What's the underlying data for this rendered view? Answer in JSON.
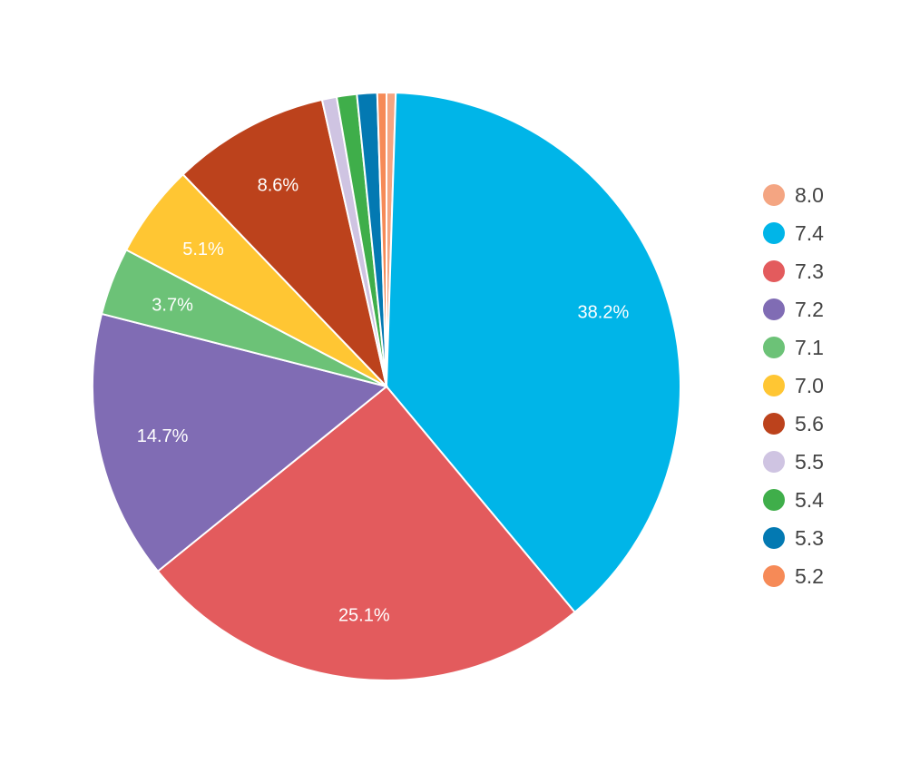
{
  "chart_data": {
    "type": "pie",
    "title": "",
    "legend_position": "right",
    "slices": [
      {
        "label": "8.0",
        "value": 0.5,
        "color": "#F4A582",
        "display": ""
      },
      {
        "label": "7.4",
        "value": 38.2,
        "color": "#00B5E8",
        "display": "38.2%"
      },
      {
        "label": "7.3",
        "value": 25.1,
        "color": "#E35B5D",
        "display": "25.1%"
      },
      {
        "label": "7.2",
        "value": 14.7,
        "color": "#806CB4",
        "display": "14.7%"
      },
      {
        "label": "7.1",
        "value": 3.7,
        "color": "#6CC277",
        "display": "3.7%"
      },
      {
        "label": "7.0",
        "value": 5.1,
        "color": "#FFC633",
        "display": "5.1%"
      },
      {
        "label": "5.6",
        "value": 8.6,
        "color": "#BC421C",
        "display": "8.6%"
      },
      {
        "label": "5.5",
        "value": 0.8,
        "color": "#CFC4E2",
        "display": ""
      },
      {
        "label": "5.4",
        "value": 1.1,
        "color": "#3FAE4A",
        "display": ""
      },
      {
        "label": "5.3",
        "value": 1.1,
        "color": "#0379B2",
        "display": ""
      },
      {
        "label": "5.2",
        "value": 0.5,
        "color": "#F68A57",
        "display": ""
      }
    ]
  }
}
